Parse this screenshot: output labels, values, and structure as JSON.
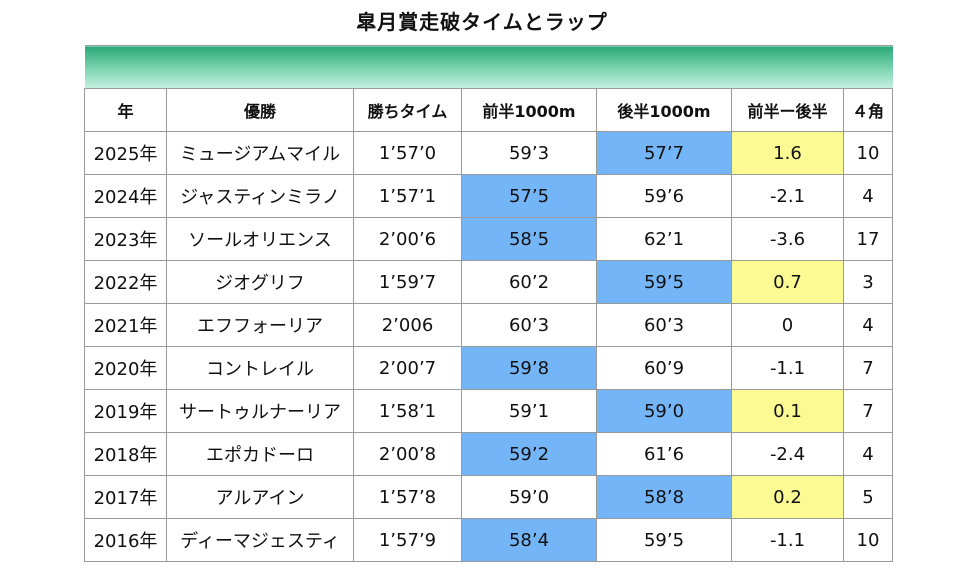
{
  "title": "皐月賞走破タイムとラップ",
  "columns": [
    "年",
    "優勝",
    "勝ちタイム",
    "前半1000m",
    "後半1000m",
    "前半ー後半",
    "４角"
  ],
  "colors": {
    "header_band": "#5cc59b",
    "faster_half": "#74b5f7",
    "positive_diff": "#fbfa93"
  },
  "rows": [
    {
      "year": "2025年",
      "winner": "ミュージアムマイル",
      "time": "1’57’0",
      "first": "59’3",
      "second": "57’7",
      "diff": "1.6",
      "corner": "10",
      "first_hl": "",
      "second_hl": "blue",
      "diff_hl": "yellow"
    },
    {
      "year": "2024年",
      "winner": "ジャスティンミラノ",
      "time": "1’57’1",
      "first": "57’5",
      "second": "59’6",
      "diff": "-2.1",
      "corner": "4",
      "first_hl": "blue",
      "second_hl": "",
      "diff_hl": ""
    },
    {
      "year": "2023年",
      "winner": "ソールオリエンス",
      "time": "2’00’6",
      "first": "58’5",
      "second": "62’1",
      "diff": "-3.6",
      "corner": "17",
      "first_hl": "blue",
      "second_hl": "",
      "diff_hl": ""
    },
    {
      "year": "2022年",
      "winner": "ジオグリフ",
      "time": "1’59’7",
      "first": "60’2",
      "second": "59’5",
      "diff": "0.7",
      "corner": "3",
      "first_hl": "",
      "second_hl": "blue",
      "diff_hl": "yellow"
    },
    {
      "year": "2021年",
      "winner": "エフフォーリア",
      "time": "2’006",
      "first": "60’3",
      "second": "60’3",
      "diff": "0",
      "corner": "4",
      "first_hl": "",
      "second_hl": "",
      "diff_hl": ""
    },
    {
      "year": "2020年",
      "winner": "コントレイル",
      "time": "2’00’7",
      "first": "59’8",
      "second": "60’9",
      "diff": "-1.1",
      "corner": "7",
      "first_hl": "blue",
      "second_hl": "",
      "diff_hl": ""
    },
    {
      "year": "2019年",
      "winner": "サートゥルナーリア",
      "time": "1’58’1",
      "first": "59’1",
      "second": "59’0",
      "diff": "0.1",
      "corner": "7",
      "first_hl": "",
      "second_hl": "blue",
      "diff_hl": "yellow"
    },
    {
      "year": "2018年",
      "winner": "エポカドーロ",
      "time": "2’00’8",
      "first": "59’2",
      "second": "61’6",
      "diff": "-2.4",
      "corner": "4",
      "first_hl": "blue",
      "second_hl": "",
      "diff_hl": ""
    },
    {
      "year": "2017年",
      "winner": "アルアイン",
      "time": "1’57’8",
      "first": "59’0",
      "second": "58’8",
      "diff": "0.2",
      "corner": "5",
      "first_hl": "",
      "second_hl": "blue",
      "diff_hl": "yellow"
    },
    {
      "year": "2016年",
      "winner": "ディーマジェスティ",
      "time": "1’57’9",
      "first": "58’4",
      "second": "59’5",
      "diff": "-1.1",
      "corner": "10",
      "first_hl": "blue",
      "second_hl": "",
      "diff_hl": ""
    }
  ]
}
